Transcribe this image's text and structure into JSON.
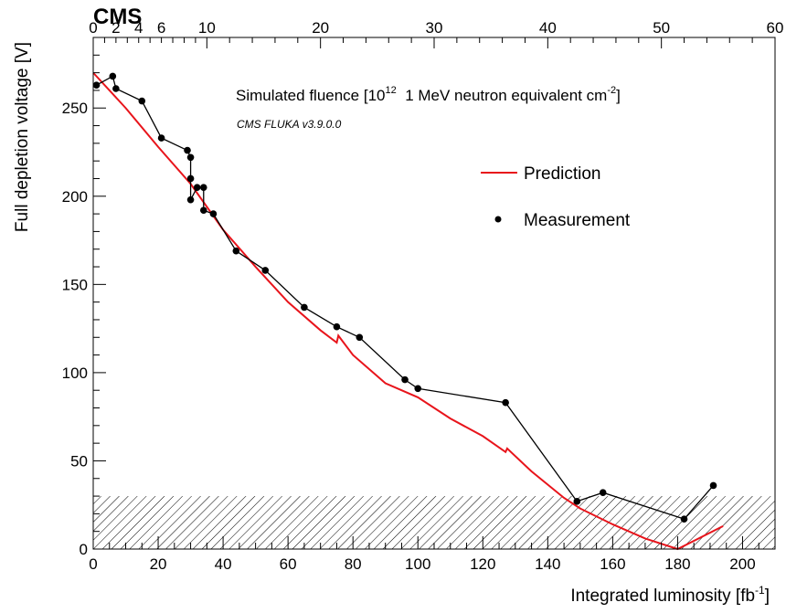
{
  "chart_data": {
    "type": "line",
    "experiment_label": "CMS",
    "xlabel": "Integrated luminosity [fb",
    "xlabel_sup": "-1",
    "xlabel_end": "]",
    "ylabel": "Full depletion voltage [V]",
    "top_axis_label_parts": [
      "Simulated fluence [10",
      "12",
      "  1 MeV neutron equivalent cm",
      "-2",
      "]"
    ],
    "simulation_note": "CMS FLUKA v3.9.0.0",
    "xlim": [
      0,
      210
    ],
    "ylim": [
      0,
      290
    ],
    "top_axis_range": [
      0,
      60
    ],
    "grid": false,
    "legend_position": "upper-right",
    "x_ticks": [
      "0",
      "20",
      "40",
      "60",
      "80",
      "100",
      "120",
      "140",
      "160",
      "180",
      "200"
    ],
    "y_ticks": [
      "0",
      "50",
      "100",
      "150",
      "200",
      "250"
    ],
    "top_ticks_major": [
      "0",
      "2",
      "4",
      "6",
      "10",
      "20",
      "30",
      "40",
      "50",
      "60"
    ],
    "colors": {
      "prediction": "#e8141b",
      "measurement": "#000000",
      "hatch": "#000000"
    },
    "hatched_band": {
      "y_from": 0,
      "y_to": 30
    },
    "series": [
      {
        "name": "Prediction",
        "style": "line",
        "x": [
          0,
          10,
          20,
          30,
          40,
          50,
          60,
          70,
          75,
          75.5,
          80,
          90,
          100,
          110,
          120,
          127,
          127.5,
          135,
          145,
          150,
          160,
          170,
          180,
          194
        ],
        "y": [
          270,
          250,
          228,
          207,
          181,
          160,
          140,
          124,
          117,
          121,
          110,
          94,
          86,
          74,
          64,
          55,
          57,
          44,
          29,
          23,
          14,
          6,
          0,
          13
        ]
      },
      {
        "name": "Measurement",
        "style": "markers+line",
        "x": [
          1,
          6,
          7,
          15,
          21,
          29,
          30,
          30,
          30,
          32,
          34,
          34,
          37,
          44,
          53,
          65,
          75,
          82,
          96,
          100,
          127,
          149,
          157,
          182,
          191
        ],
        "y": [
          263,
          268,
          261,
          254,
          233,
          226,
          222,
          210,
          198,
          205,
          205,
          192,
          190,
          169,
          158,
          137,
          126,
          120,
          96,
          91,
          83,
          27,
          32,
          17,
          36
        ]
      }
    ]
  }
}
